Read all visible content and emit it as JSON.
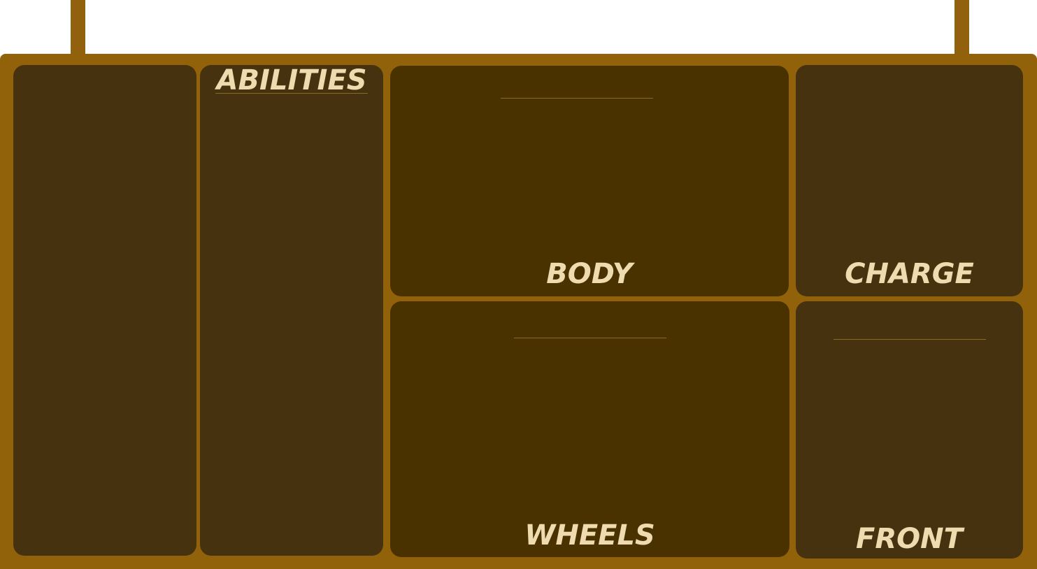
{
  "board": {
    "panels": {
      "left_blank": {},
      "abilities": {
        "title": "ABILITIES"
      },
      "body": {
        "title": "BODY"
      },
      "charge": {
        "title": "CHARGE"
      },
      "wheels": {
        "title": "WHEELS"
      },
      "front": {
        "title": "FRONT"
      }
    }
  },
  "colors": {
    "board_frame": "#91620a",
    "panel_fill": "#473210",
    "panel_fill_alt": "#493200",
    "title_text": "#efdbb0"
  }
}
